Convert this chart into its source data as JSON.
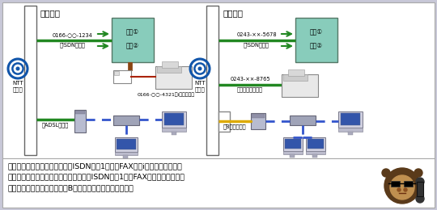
{
  "bg_color": "#c8c8d8",
  "diagram_bg": "#ffffff",
  "green": "#228822",
  "blue_dash": "#3355cc",
  "yellow": "#ddaa00",
  "box_teal": "#88ccbb",
  "red": "#aa2200",
  "dark_green": "#226622",
  "asahikawa_title": "旭川支店",
  "tochigi_title": "栃木支店",
  "ntt_label": "NTT\n東日本",
  "isdn_label_a": "0166-○○-1234",
  "isdn_sublabel_a": "【ISDN回線】",
  "fax_label_a": "0166-○○-4321（iナンバー）",
  "adsl_label": "【ADSL回線】",
  "isdn_label_t": "0243-××-5678",
  "isdn_sublabel_t": "【ISDN回線】",
  "analog_label_t": "0243-××-8765",
  "analog_sublabel_t": "【アナログ回線】",
  "bflets_label": "【Bフレッツ】",
  "gaisen1": "外線①",
  "gaisen2": "外線②",
  "text_bottom": "まず、旭川支店では、電話用にISDN回線1本と、FAX用にiナンバーを使って\nいます。次に、栃木支店では、電話用にISDN回線1本、FAX用にアナログ回線\nを一本、インターネット用にBフレッツを契約しています。"
}
